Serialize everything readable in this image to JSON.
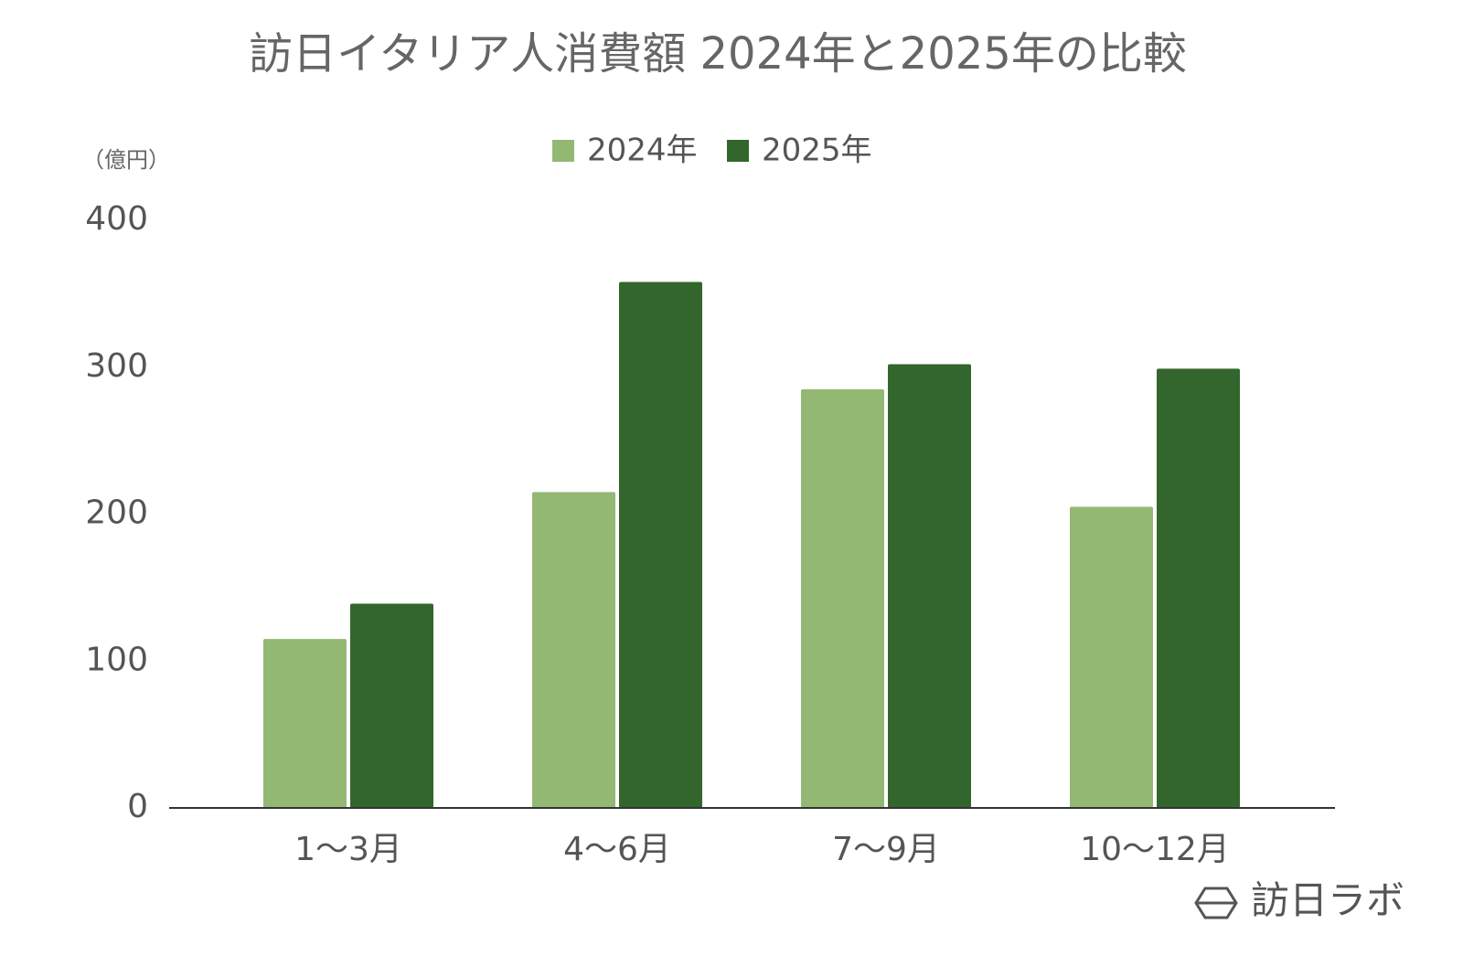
{
  "chart_data": {
    "type": "bar",
    "title": "訪日イタリア人消費額 2024年と2025年の比較",
    "y_axis_label": "（億円）",
    "categories": [
      "1～3月",
      "4～6月",
      "7～9月",
      "10～12月"
    ],
    "series": [
      {
        "name": "2024年",
        "color": "#93b874",
        "values": [
          115,
          215,
          285,
          205
        ]
      },
      {
        "name": "2025年",
        "color": "#33662c",
        "values": [
          139,
          358,
          302,
          299
        ]
      }
    ],
    "ylim": [
      0,
      400
    ],
    "yticks": [
      0,
      100,
      200,
      300,
      400
    ],
    "grid": false,
    "legend": "top",
    "watermark": "訪日ラボ"
  }
}
